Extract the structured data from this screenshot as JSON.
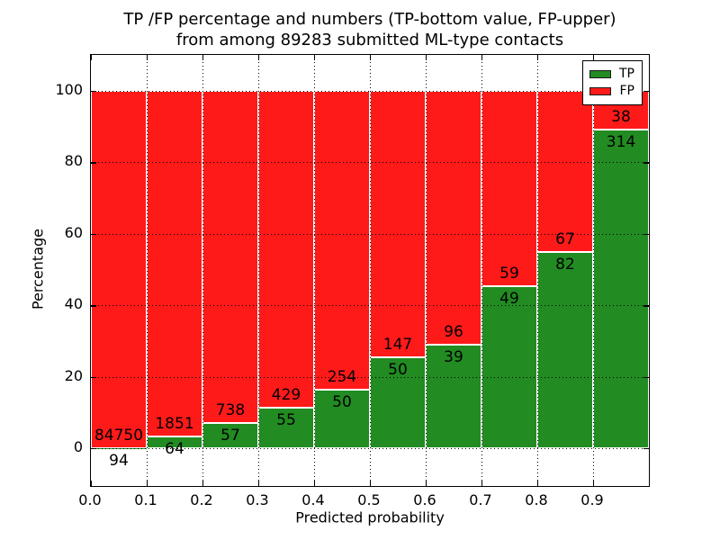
{
  "title": {
    "line1": "TP /FP percentage and numbers (TP-bottom value, FP-upper)",
    "line2": "from among 89283 submitted ML-type contacts"
  },
  "axes": {
    "ylabel": "Percentage",
    "xlabel": "Predicted probability",
    "ytick_labels": [
      "0",
      "20",
      "40",
      "60",
      "80",
      "100"
    ],
    "xtick_labels": [
      "0.0",
      "0.1",
      "0.2",
      "0.3",
      "0.4",
      "0.5",
      "0.6",
      "0.7",
      "0.8",
      "0.9"
    ]
  },
  "legend": {
    "position": "upper right",
    "items": [
      {
        "label": "TP",
        "color": "#228b22"
      },
      {
        "label": "FP",
        "color": "#ff1a1a"
      }
    ]
  },
  "colors": {
    "tp_green": "#228b22",
    "fp_red": "#ff1a1a",
    "bar_edge": "#ffffff",
    "grid": "#000000",
    "background": "#ffffff"
  },
  "chart_data": {
    "type": "bar",
    "stacked": true,
    "normalized": "each bin scaled to 100%; data labels show raw counts (TP bottom, FP upper)",
    "title": "TP /FP percentage and numbers (TP-bottom value, FP-upper) from among 89283 submitted ML-type contacts",
    "xlabel": "Predicted probability",
    "ylabel": "Percentage",
    "total_contacts": 89283,
    "bin_edges": [
      0.0,
      0.1,
      0.2,
      0.3,
      0.4,
      0.5,
      0.6,
      0.7,
      0.8,
      0.9,
      1.0
    ],
    "series": [
      {
        "name": "TP",
        "color": "#228b22",
        "counts": [
          94,
          64,
          57,
          55,
          50,
          50,
          39,
          49,
          82,
          314
        ]
      },
      {
        "name": "FP",
        "color": "#ff1a1a",
        "counts": [
          84750,
          1851,
          738,
          429,
          254,
          147,
          96,
          59,
          67,
          38
        ]
      }
    ],
    "tp_percent_of_bin": [
      0.11,
      3.34,
      7.17,
      11.36,
      16.45,
      25.38,
      28.89,
      45.37,
      55.03,
      89.2
    ],
    "yticks": [
      0,
      20,
      40,
      60,
      80,
      100
    ],
    "xticks": [
      0.0,
      0.1,
      0.2,
      0.3,
      0.4,
      0.5,
      0.6,
      0.7,
      0.8,
      0.9
    ],
    "ylim": [
      -10.8,
      110
    ],
    "xlim": [
      0.0,
      1.0
    ],
    "grid": "dotted black, drawn above bars",
    "legend_position": "upper right",
    "tick_direction": "in"
  }
}
